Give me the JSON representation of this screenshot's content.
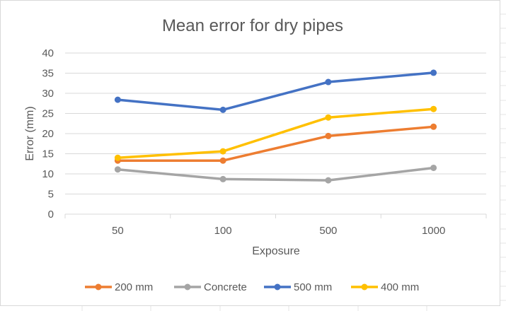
{
  "chart_data": {
    "type": "line",
    "title": "Mean error for dry pipes",
    "xlabel": "Exposure",
    "ylabel": "Error (mm)",
    "categories": [
      "50",
      "100",
      "500",
      "1000"
    ],
    "ylim": [
      0,
      40
    ],
    "yticks": [
      0,
      5,
      10,
      15,
      20,
      25,
      30,
      35,
      40
    ],
    "grid": true,
    "legend_position": "bottom",
    "series": [
      {
        "name": "200 mm",
        "color": "#ED7D31",
        "values": [
          13.3,
          13.3,
          19.4,
          21.7
        ]
      },
      {
        "name": "Concrete",
        "color": "#A5A5A5",
        "values": [
          11.1,
          8.7,
          8.4,
          11.5
        ]
      },
      {
        "name": "500 mm",
        "color": "#4472C4",
        "values": [
          28.4,
          25.9,
          32.8,
          35.1
        ]
      },
      {
        "name": "400 mm",
        "color": "#FFC000",
        "values": [
          14.0,
          15.6,
          24.0,
          26.1
        ]
      }
    ]
  }
}
